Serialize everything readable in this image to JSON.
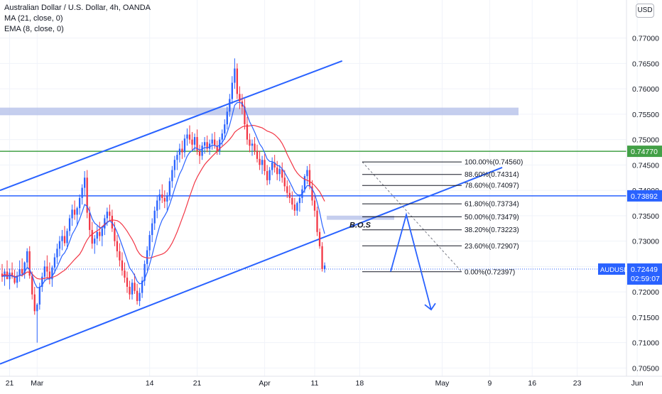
{
  "header": {
    "title": "Australian Dollar / U.S. Dollar, 4h, OANDA",
    "indicator_ma": "MA (21, close, 0)",
    "indicator_ema": "EMA (8, close, 0)",
    "currency_badge": "USD"
  },
  "chart_data": {
    "type": "candlestick",
    "title": "Australian Dollar / U.S. Dollar, 4h, OANDA",
    "symbol": "AUDUSD",
    "timeframe": "4h",
    "ylim": [
      0.7045,
      0.7775
    ],
    "y_ticks": [
      0.77,
      0.765,
      0.76,
      0.755,
      0.75,
      0.745,
      0.74,
      0.735,
      0.73,
      0.725,
      0.72,
      0.715,
      0.71,
      0.705
    ],
    "y_tick_labels": [
      "0.77000",
      "0.76500",
      "0.76000",
      "0.75500",
      "0.75000",
      "0.74500",
      "0.74000",
      "0.73500",
      "0.73000",
      "0.72500",
      "0.72000",
      "0.71500",
      "0.71000",
      "0.70500"
    ],
    "x_ticks": [
      {
        "label": "21",
        "i": 3
      },
      {
        "label": "Mar",
        "i": 14
      },
      {
        "label": "14",
        "i": 59
      },
      {
        "label": "21",
        "i": 78
      },
      {
        "label": "Apr",
        "i": 105
      },
      {
        "label": "11",
        "i": 125
      },
      {
        "label": "18",
        "i": 143
      },
      {
        "label": "May",
        "i": 176
      },
      {
        "label": "9",
        "i": 195
      },
      {
        "label": "16",
        "i": 212
      },
      {
        "label": "23",
        "i": 230
      },
      {
        "label": "Jun",
        "i": 254
      }
    ],
    "candles_ohlc": [
      [
        0.7236,
        0.7255,
        0.722,
        0.723
      ],
      [
        0.723,
        0.7246,
        0.7212,
        0.724
      ],
      [
        0.724,
        0.7262,
        0.7228,
        0.7225
      ],
      [
        0.7225,
        0.7246,
        0.7205,
        0.7238
      ],
      [
        0.7238,
        0.7258,
        0.7226,
        0.723
      ],
      [
        0.723,
        0.7244,
        0.7215,
        0.7218
      ],
      [
        0.7218,
        0.724,
        0.7208,
        0.7232
      ],
      [
        0.7232,
        0.7262,
        0.722,
        0.7245
      ],
      [
        0.7245,
        0.7266,
        0.723,
        0.7236
      ],
      [
        0.7236,
        0.726,
        0.7226,
        0.7258
      ],
      [
        0.7258,
        0.7286,
        0.7246,
        0.728
      ],
      [
        0.728,
        0.729,
        0.7226,
        0.7232
      ],
      [
        0.7232,
        0.724,
        0.7185,
        0.7195
      ],
      [
        0.7195,
        0.721,
        0.7155,
        0.7162
      ],
      [
        0.7162,
        0.7178,
        0.71,
        0.7175
      ],
      [
        0.7175,
        0.7218,
        0.7165,
        0.721
      ],
      [
        0.721,
        0.7238,
        0.72,
        0.723
      ],
      [
        0.723,
        0.7262,
        0.722,
        0.725
      ],
      [
        0.725,
        0.7272,
        0.7228,
        0.724
      ],
      [
        0.724,
        0.7258,
        0.7215,
        0.7225
      ],
      [
        0.7225,
        0.7252,
        0.721,
        0.7248
      ],
      [
        0.7248,
        0.7276,
        0.7236,
        0.7268
      ],
      [
        0.7268,
        0.7295,
        0.7255,
        0.7285
      ],
      [
        0.7285,
        0.731,
        0.727,
        0.73
      ],
      [
        0.73,
        0.7322,
        0.7282,
        0.731
      ],
      [
        0.731,
        0.733,
        0.729,
        0.7296
      ],
      [
        0.7296,
        0.7325,
        0.7284,
        0.732
      ],
      [
        0.732,
        0.7352,
        0.731,
        0.7345
      ],
      [
        0.7345,
        0.7372,
        0.733,
        0.7362
      ],
      [
        0.7362,
        0.738,
        0.7342,
        0.7352
      ],
      [
        0.7352,
        0.7368,
        0.733,
        0.7365
      ],
      [
        0.7365,
        0.7392,
        0.7352,
        0.7385
      ],
      [
        0.7385,
        0.7412,
        0.7372,
        0.7405
      ],
      [
        0.7405,
        0.7438,
        0.739,
        0.7425
      ],
      [
        0.7425,
        0.744,
        0.7345,
        0.7356
      ],
      [
        0.7356,
        0.7368,
        0.731,
        0.7322
      ],
      [
        0.7322,
        0.7338,
        0.7285,
        0.7295
      ],
      [
        0.7295,
        0.7312,
        0.7275,
        0.7305
      ],
      [
        0.7305,
        0.733,
        0.7292,
        0.7318
      ],
      [
        0.7318,
        0.7338,
        0.73,
        0.731
      ],
      [
        0.731,
        0.733,
        0.729,
        0.7325
      ],
      [
        0.7325,
        0.7352,
        0.7312,
        0.7345
      ],
      [
        0.7345,
        0.7366,
        0.733,
        0.7358
      ],
      [
        0.7358,
        0.7372,
        0.734,
        0.735
      ],
      [
        0.735,
        0.7362,
        0.7318,
        0.7325
      ],
      [
        0.7325,
        0.7338,
        0.729,
        0.73
      ],
      [
        0.73,
        0.7312,
        0.7268,
        0.728
      ],
      [
        0.728,
        0.7296,
        0.725,
        0.7262
      ],
      [
        0.7262,
        0.7278,
        0.7232,
        0.7242
      ],
      [
        0.7242,
        0.7258,
        0.7218,
        0.7228
      ],
      [
        0.7228,
        0.724,
        0.7198,
        0.721
      ],
      [
        0.721,
        0.7222,
        0.7185,
        0.7195
      ],
      [
        0.7195,
        0.7225,
        0.7185,
        0.7218
      ],
      [
        0.7218,
        0.7236,
        0.7196,
        0.7202
      ],
      [
        0.7202,
        0.7216,
        0.7175,
        0.7182
      ],
      [
        0.7182,
        0.7208,
        0.7172,
        0.7198
      ],
      [
        0.7198,
        0.723,
        0.7188,
        0.7222
      ],
      [
        0.7222,
        0.7262,
        0.7212,
        0.7255
      ],
      [
        0.7255,
        0.729,
        0.7242,
        0.7282
      ],
      [
        0.7282,
        0.732,
        0.727,
        0.7312
      ],
      [
        0.7312,
        0.7345,
        0.7298,
        0.7335
      ],
      [
        0.7335,
        0.7368,
        0.7322,
        0.736
      ],
      [
        0.736,
        0.739,
        0.7345,
        0.738
      ],
      [
        0.738,
        0.7402,
        0.7362,
        0.7392
      ],
      [
        0.7392,
        0.7412,
        0.7375,
        0.7385
      ],
      [
        0.7385,
        0.74,
        0.7365,
        0.7378
      ],
      [
        0.7378,
        0.7396,
        0.736,
        0.739
      ],
      [
        0.739,
        0.7425,
        0.738,
        0.7418
      ],
      [
        0.7418,
        0.7448,
        0.7405,
        0.744
      ],
      [
        0.744,
        0.7468,
        0.7425,
        0.746
      ],
      [
        0.746,
        0.7478,
        0.744,
        0.747
      ],
      [
        0.747,
        0.7492,
        0.7455,
        0.7482
      ],
      [
        0.7482,
        0.7498,
        0.7462,
        0.7475
      ],
      [
        0.7475,
        0.751,
        0.7465,
        0.7502
      ],
      [
        0.7502,
        0.7522,
        0.7488,
        0.751
      ],
      [
        0.751,
        0.7528,
        0.7492,
        0.75
      ],
      [
        0.75,
        0.7515,
        0.7478,
        0.749
      ],
      [
        0.749,
        0.7512,
        0.7478,
        0.7505
      ],
      [
        0.7505,
        0.752,
        0.747,
        0.7478
      ],
      [
        0.7478,
        0.749,
        0.7452,
        0.7468
      ],
      [
        0.7468,
        0.7495,
        0.746,
        0.7488
      ],
      [
        0.7488,
        0.7505,
        0.7472,
        0.7495
      ],
      [
        0.7495,
        0.7508,
        0.7475,
        0.7482
      ],
      [
        0.7482,
        0.75,
        0.747,
        0.7492
      ],
      [
        0.7492,
        0.7512,
        0.748,
        0.75
      ],
      [
        0.75,
        0.7515,
        0.7482,
        0.7488
      ],
      [
        0.7488,
        0.7498,
        0.747,
        0.7478
      ],
      [
        0.7478,
        0.7505,
        0.747,
        0.75
      ],
      [
        0.75,
        0.752,
        0.7488,
        0.7512
      ],
      [
        0.7512,
        0.754,
        0.75,
        0.753
      ],
      [
        0.753,
        0.7565,
        0.752,
        0.7555
      ],
      [
        0.7555,
        0.759,
        0.7545,
        0.758
      ],
      [
        0.758,
        0.7625,
        0.757,
        0.7612
      ],
      [
        0.7612,
        0.766,
        0.76,
        0.764
      ],
      [
        0.764,
        0.765,
        0.758,
        0.759
      ],
      [
        0.759,
        0.7605,
        0.756,
        0.7575
      ],
      [
        0.7575,
        0.759,
        0.755,
        0.7565
      ],
      [
        0.7565,
        0.758,
        0.752,
        0.753
      ],
      [
        0.753,
        0.7545,
        0.749,
        0.75
      ],
      [
        0.75,
        0.7512,
        0.7475,
        0.7488
      ],
      [
        0.7488,
        0.75,
        0.7468,
        0.7492
      ],
      [
        0.7492,
        0.7505,
        0.747,
        0.7478
      ],
      [
        0.7478,
        0.749,
        0.7455,
        0.7462
      ],
      [
        0.7462,
        0.7478,
        0.744,
        0.745
      ],
      [
        0.745,
        0.7468,
        0.7432,
        0.746
      ],
      [
        0.746,
        0.7472,
        0.743,
        0.7438
      ],
      [
        0.7438,
        0.745,
        0.741,
        0.742
      ],
      [
        0.742,
        0.7446,
        0.7412,
        0.744
      ],
      [
        0.744,
        0.7465,
        0.743,
        0.7455
      ],
      [
        0.7455,
        0.747,
        0.7435,
        0.7445
      ],
      [
        0.7445,
        0.7458,
        0.742,
        0.7432
      ],
      [
        0.7432,
        0.745,
        0.7418,
        0.7442
      ],
      [
        0.7442,
        0.7455,
        0.7415,
        0.7425
      ],
      [
        0.7425,
        0.744,
        0.7398,
        0.7408
      ],
      [
        0.7408,
        0.742,
        0.7385,
        0.7395
      ],
      [
        0.7395,
        0.741,
        0.7375,
        0.7385
      ],
      [
        0.7385,
        0.7398,
        0.7362,
        0.7372
      ],
      [
        0.7372,
        0.7385,
        0.735,
        0.736
      ],
      [
        0.736,
        0.7378,
        0.735,
        0.7375
      ],
      [
        0.7375,
        0.7392,
        0.7358,
        0.7385
      ],
      [
        0.7385,
        0.741,
        0.7375,
        0.7402
      ],
      [
        0.7402,
        0.7432,
        0.7395,
        0.7428
      ],
      [
        0.7428,
        0.7448,
        0.7412,
        0.744
      ],
      [
        0.744,
        0.7452,
        0.7402,
        0.7408
      ],
      [
        0.7408,
        0.742,
        0.737,
        0.738
      ],
      [
        0.738,
        0.7392,
        0.7348,
        0.736
      ],
      [
        0.736,
        0.7368,
        0.731,
        0.7318
      ],
      [
        0.7318,
        0.7325,
        0.7285,
        0.729
      ],
      [
        0.729,
        0.7298,
        0.724,
        0.7245
      ],
      [
        0.7245,
        0.7258,
        0.7238,
        0.7252
      ]
    ],
    "ma_21_close": "red line",
    "ema_8_close": "blue line",
    "fibonacci_levels": [
      {
        "label": "100.00%(0.74560)",
        "price": 0.7456
      },
      {
        "label": "88.60%(0.74314)",
        "price": 0.74314
      },
      {
        "label": "78.60%(0.74097)",
        "price": 0.74097
      },
      {
        "label": "61.80%(0.73734)",
        "price": 0.73734
      },
      {
        "label": "50.00%(0.73479)",
        "price": 0.73479
      },
      {
        "label": "38.20%(0.73223)",
        "price": 0.73223
      },
      {
        "label": "23.60%(0.72907)",
        "price": 0.72907
      },
      {
        "label": "0.00%(0.72397)",
        "price": 0.72397
      }
    ],
    "horizontal_lines": [
      {
        "price": 0.7477,
        "label": "0.74770",
        "color": "#43a047"
      },
      {
        "price": 0.73892,
        "label": "0.73892",
        "color": "#2962ff"
      }
    ],
    "zones": [
      {
        "price_low": 0.7548,
        "price_high": 0.7563,
        "color": "#b2bde8"
      },
      {
        "price_low": 0.7342,
        "price_high": 0.735,
        "color": "#b2bde8"
      }
    ],
    "annotation_bos": "B.O.S",
    "current_price": {
      "symbol": "AUDUSD",
      "price": 0.72449,
      "label": "0.72449",
      "countdown": "02:59:07"
    }
  },
  "colors": {
    "up": "#2962ff",
    "down": "#f23645",
    "ma": "#f23645",
    "ema": "#2962ff",
    "grid": "#f0f3fa",
    "axis_text": "#131722",
    "support_green": "#43a047",
    "resistance_blue": "#2962ff",
    "channel": "#2962ff"
  }
}
